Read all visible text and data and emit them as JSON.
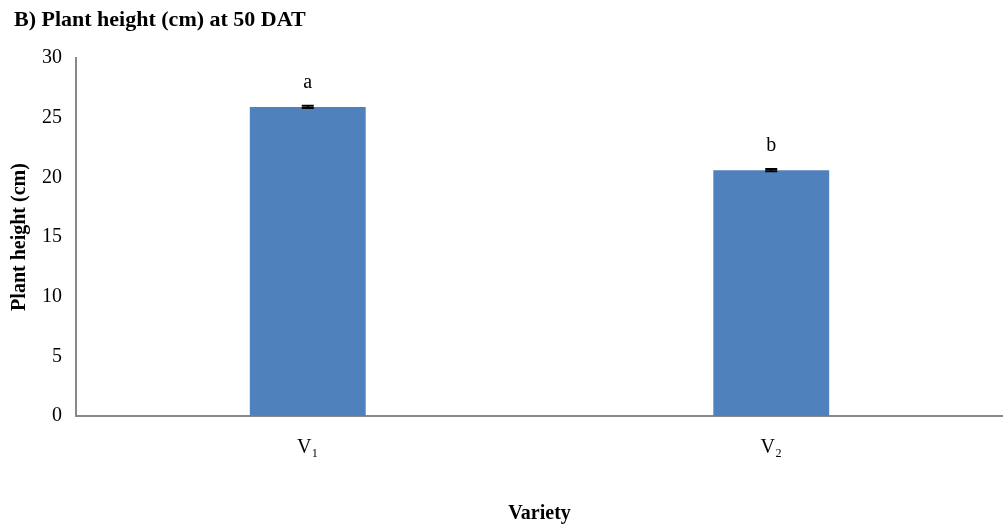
{
  "chart_data": {
    "type": "bar",
    "title": "B) Plant height (cm) at 50 DAT",
    "xlabel": "Variety",
    "ylabel": "Plant height (cm)",
    "categories": [
      "V₁",
      "V₂"
    ],
    "values": [
      25.9,
      20.6
    ],
    "errors": [
      0.1,
      0.1
    ],
    "color": "#4f81bd",
    "ylim": [
      0,
      30
    ],
    "yticks": [
      0,
      5,
      10,
      15,
      20,
      25,
      30
    ],
    "grid": false,
    "legend": false,
    "annotations": [
      {
        "text": "a",
        "x": "V₁",
        "y": 25.9
      },
      {
        "text": "b",
        "x": "V₂",
        "y": 20.6
      }
    ]
  }
}
